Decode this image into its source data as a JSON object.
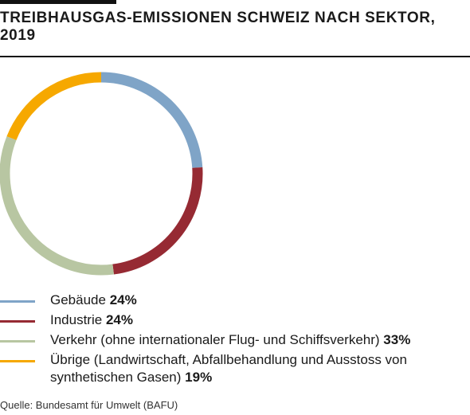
{
  "title": "TREIBHAUSGAS-EMISSIONEN SCHWEIZ NACH SEKTOR, 2019",
  "source": "Quelle: Bundesamt für Umwelt (BAFU)",
  "chart_data": {
    "type": "pie",
    "variant": "donut",
    "title": "TREIBHAUSGAS-EMISSIONEN SCHWEIZ NACH SEKTOR, 2019",
    "unit": "%",
    "slices": [
      {
        "label": "Gebäude",
        "value": 24,
        "value_label": "24%",
        "color": "#7fa4c7"
      },
      {
        "label": "Industrie",
        "value": 24,
        "value_label": "24%",
        "color": "#962a33"
      },
      {
        "label": "Verkehr (ohne internationaler Flug- und Schiffsverkehr)",
        "value": 33,
        "value_label": "33%",
        "color": "#b8c6a2"
      },
      {
        "label": "Übrige (Landwirtschaft, Abfallbehandlung und Ausstoss von synthetischen Gasen)",
        "value": 19,
        "value_label": "19%",
        "color": "#f6a800"
      }
    ],
    "legend_position": "bottom"
  }
}
